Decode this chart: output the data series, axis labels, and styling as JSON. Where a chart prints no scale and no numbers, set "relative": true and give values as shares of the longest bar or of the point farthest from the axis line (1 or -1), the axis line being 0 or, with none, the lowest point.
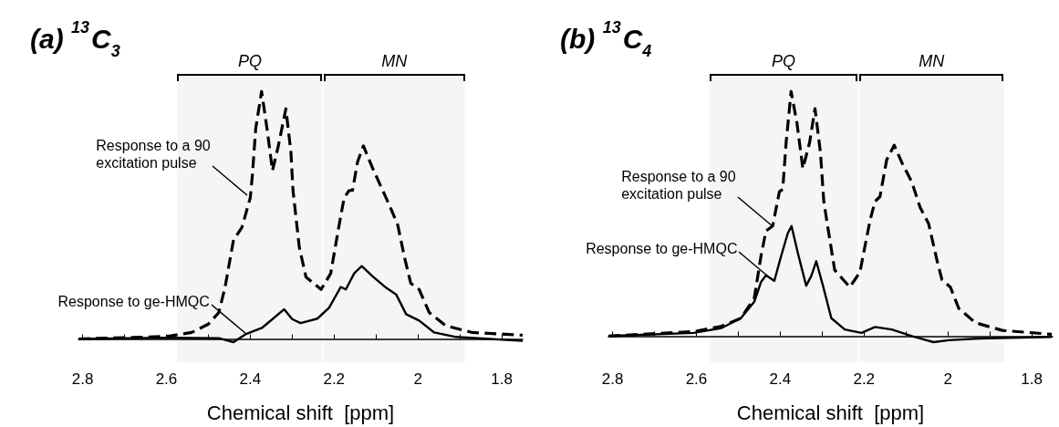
{
  "chart_data": [
    {
      "type": "line",
      "title": "(a) $^{13}$C$_{3}$",
      "xlabel": "Chemical shift  [ppm]",
      "relative": true,
      "xlim": [
        2.81,
        1.75
      ],
      "xticks": [
        2.8,
        {
          "value": 2.7,
          "label": null
        },
        2.6,
        {
          "value": 2.5,
          "label": null
        },
        2.4,
        {
          "value": 2.3,
          "label": null
        },
        2.2,
        {
          "value": 2.1,
          "label": null
        },
        2,
        {
          "value": 1.9,
          "label": null
        },
        1.8
      ],
      "series": [
        {
          "color": "#000000",
          "line_style": "dashed",
          "x": [
            2.81,
            2.6,
            2.54,
            2.5,
            2.475,
            2.46,
            2.44,
            2.42,
            2.4,
            2.395,
            2.387,
            2.373,
            2.36,
            2.347,
            2.333,
            2.315,
            2.303,
            2.298,
            2.283,
            2.267,
            2.231,
            2.208,
            2.188,
            2.176,
            2.164,
            2.156,
            2.144,
            2.13,
            2.108,
            2.084,
            2.068,
            2.048,
            2.032,
            2.017,
            1.997,
            1.973,
            1.933,
            1.87,
            1.75
          ],
          "values": [
            0,
            0.01,
            0.026,
            0.06,
            0.107,
            0.21,
            0.4,
            0.45,
            0.57,
            0.66,
            0.85,
            1,
            0.85,
            0.68,
            0.78,
            0.93,
            0.755,
            0.6,
            0.37,
            0.25,
            0.2,
            0.265,
            0.46,
            0.57,
            0.6,
            0.6,
            0.715,
            0.78,
            0.69,
            0.6,
            0.54,
            0.46,
            0.33,
            0.225,
            0.2,
            0.107,
            0.053,
            0.026,
            0.015
          ]
        },
        {
          "color": "#000000",
          "line_style": "solid",
          "x": [
            2.81,
            2.6,
            2.475,
            2.44,
            2.41,
            2.371,
            2.347,
            2.319,
            2.3,
            2.28,
            2.24,
            2.212,
            2.184,
            2.172,
            2.152,
            2.134,
            2.108,
            2.076,
            2.052,
            2.028,
            1.997,
            1.961,
            1.909,
            1.75
          ],
          "values": [
            0,
            0.005,
            0.003,
            -0.013,
            0.02,
            0.046,
            0.08,
            0.12,
            0.08,
            0.064,
            0.082,
            0.126,
            0.21,
            0.2,
            0.265,
            0.294,
            0.253,
            0.207,
            0.18,
            0.1,
            0.074,
            0.026,
            0.008,
            -0.008
          ]
        }
      ],
      "bands": [
        {
          "axis": "x",
          "from": 2.574,
          "to": 2.228,
          "label": "PQ"
        },
        {
          "axis": "x",
          "from": 2.225,
          "to": 1.888,
          "label": "MN"
        }
      ],
      "annotations": [
        {
          "text": "Response to a 90\nexcitation pulse",
          "x": 2.408,
          "y": 0.58
        },
        {
          "text": "Response to ge-HMQC",
          "x": 2.41,
          "y": 0.02
        }
      ]
    },
    {
      "type": "line",
      "title": "(b) $^{13}$C$_{4}$",
      "xlabel": "Chemical shift  [ppm]",
      "relative": true,
      "xlim": [
        2.81,
        1.75
      ],
      "xticks": [
        2.8,
        {
          "value": 2.7,
          "label": null
        },
        2.6,
        {
          "value": 2.5,
          "label": null
        },
        2.4,
        {
          "value": 2.3,
          "label": null
        },
        2.2,
        {
          "value": 2.1,
          "label": null
        },
        2,
        {
          "value": 1.9,
          "label": null
        },
        1.8
      ],
      "series": [
        {
          "color": "#000000",
          "line_style": "dashed",
          "x": [
            2.81,
            2.606,
            2.54,
            2.494,
            2.462,
            2.446,
            2.434,
            2.418,
            2.402,
            2.394,
            2.386,
            2.374,
            2.36,
            2.346,
            2.33,
            2.317,
            2.304,
            2.296,
            2.286,
            2.27,
            2.234,
            2.21,
            2.186,
            2.174,
            2.162,
            2.146,
            2.128,
            2.11,
            2.086,
            2.066,
            2.046,
            2.026,
            2.014,
            1.994,
            1.974,
            1.934,
            1.87,
            1.752
          ],
          "values": [
            0,
            0.018,
            0.04,
            0.073,
            0.154,
            0.326,
            0.43,
            0.45,
            0.59,
            0.6,
            0.79,
            1,
            0.87,
            0.685,
            0.79,
            0.93,
            0.75,
            0.55,
            0.44,
            0.27,
            0.2,
            0.26,
            0.47,
            0.55,
            0.57,
            0.72,
            0.78,
            0.71,
            0.63,
            0.525,
            0.46,
            0.31,
            0.23,
            0.2,
            0.113,
            0.054,
            0.023,
            0.007
          ]
        },
        {
          "color": "#000000",
          "line_style": "solid",
          "x": [
            2.81,
            2.606,
            2.54,
            2.494,
            2.462,
            2.446,
            2.434,
            2.414,
            2.398,
            2.382,
            2.373,
            2.358,
            2.338,
            2.326,
            2.314,
            2.298,
            2.278,
            2.246,
            2.206,
            2.174,
            2.134,
            2.086,
            2.034,
            1.998,
            1.926,
            1.752
          ],
          "values": [
            0,
            0.013,
            0.033,
            0.073,
            0.14,
            0.22,
            0.248,
            0.226,
            0.326,
            0.42,
            0.45,
            0.34,
            0.206,
            0.245,
            0.306,
            0.206,
            0.073,
            0.027,
            0.013,
            0.037,
            0.027,
            0,
            -0.025,
            -0.017,
            -0.01,
            -0.004
          ]
        }
      ],
      "bands": [
        {
          "axis": "x",
          "from": 2.568,
          "to": 2.214,
          "label": "PQ"
        },
        {
          "axis": "x",
          "from": 2.21,
          "to": 1.866,
          "label": "MN"
        }
      ],
      "annotations": [
        {
          "text": "Response to a 90\nexcitation pulse",
          "x": 2.418,
          "y": 0.45
        },
        {
          "text": "Response to ge-HMQC",
          "x": 2.414,
          "y": 0.226
        }
      ]
    }
  ]
}
